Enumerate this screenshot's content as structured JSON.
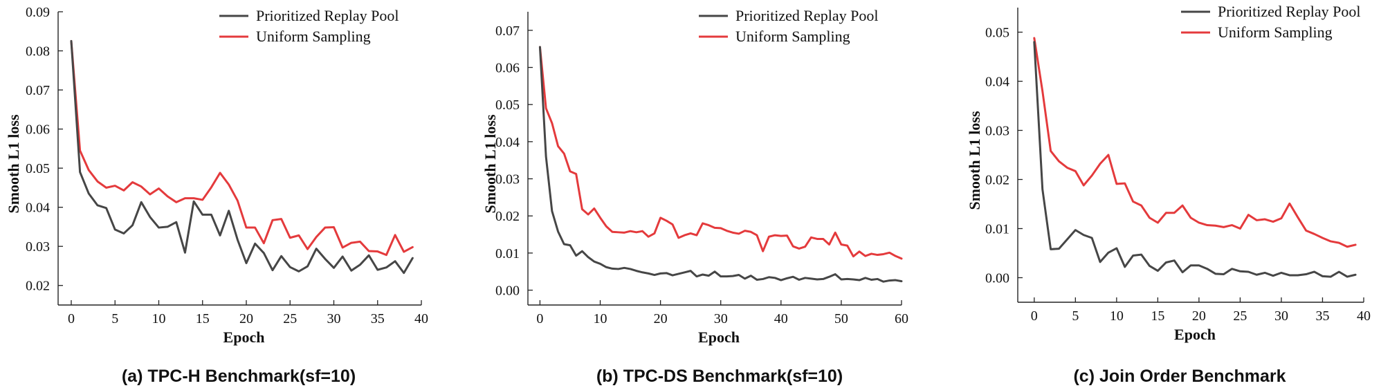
{
  "colors": {
    "prioritized": "#464646",
    "uniform": "#e43a3c",
    "axis": "#222222"
  },
  "chart_data": [
    {
      "type": "line",
      "caption": "(a) TPC-H Benchmark(sf=10)",
      "xlabel": "Epoch",
      "ylabel": "Smooth L1 loss",
      "xlim": [
        -1.5,
        40
      ],
      "ylim": [
        0.015,
        0.09
      ],
      "xticks": [
        0,
        5,
        10,
        15,
        20,
        25,
        30,
        35,
        40
      ],
      "yticks": [
        0.02,
        0.03,
        0.04,
        0.05,
        0.06,
        0.07,
        0.08,
        0.09
      ],
      "ytick_labels": [
        "0.02",
        "0.03",
        "0.04",
        "0.05",
        "0.06",
        "0.07",
        "0.08",
        "0.09"
      ],
      "legend_position": "top-right",
      "series": [
        {
          "name": "Prioritized Replay Pool",
          "color": "#464646",
          "values": [
            0.0825,
            0.049,
            0.0435,
            0.0405,
            0.0398,
            0.0343,
            0.0333,
            0.0354,
            0.0413,
            0.0375,
            0.0348,
            0.035,
            0.0362,
            0.0284,
            0.0415,
            0.0381,
            0.0381,
            0.0328,
            0.0391,
            0.0317,
            0.0257,
            0.0307,
            0.0283,
            0.0239,
            0.0275,
            0.0247,
            0.0236,
            0.0249,
            0.0294,
            0.0268,
            0.0245,
            0.0274,
            0.0238,
            0.0253,
            0.0277,
            0.024,
            0.0246,
            0.0262,
            0.0232,
            0.027
          ]
        },
        {
          "name": "Uniform Sampling",
          "color": "#e43a3c",
          "values": [
            0.0825,
            0.0545,
            0.0495,
            0.0466,
            0.045,
            0.0455,
            0.0443,
            0.0464,
            0.0453,
            0.0433,
            0.0448,
            0.0428,
            0.0413,
            0.0423,
            0.0423,
            0.0419,
            0.0451,
            0.0488,
            0.0458,
            0.0417,
            0.0348,
            0.0348,
            0.0308,
            0.0367,
            0.037,
            0.0322,
            0.0328,
            0.0293,
            0.0324,
            0.0348,
            0.0349,
            0.0297,
            0.0309,
            0.0312,
            0.0288,
            0.0287,
            0.0278,
            0.0329,
            0.0286,
            0.0298
          ]
        }
      ]
    },
    {
      "type": "line",
      "caption": "(b) TPC-DS Benchmark(sf=10)",
      "xlabel": "Epoch",
      "ylabel": "Smooth L1 loss",
      "xlim": [
        -2,
        60
      ],
      "ylim": [
        -0.004,
        0.075
      ],
      "xticks": [
        0,
        10,
        20,
        30,
        40,
        50,
        60
      ],
      "yticks": [
        0.0,
        0.01,
        0.02,
        0.03,
        0.04,
        0.05,
        0.06,
        0.07
      ],
      "ytick_labels": [
        "0.00",
        "0.01",
        "0.02",
        "0.03",
        "0.04",
        "0.05",
        "0.06",
        "0.07"
      ],
      "legend_position": "top-right",
      "series": [
        {
          "name": "Prioritized Replay Pool",
          "color": "#464646",
          "values": [
            0.0655,
            0.036,
            0.0213,
            0.0158,
            0.0124,
            0.0121,
            0.0093,
            0.0105,
            0.0089,
            0.0077,
            0.0071,
            0.0062,
            0.0058,
            0.0057,
            0.006,
            0.0057,
            0.0052,
            0.0048,
            0.0045,
            0.0041,
            0.0045,
            0.0046,
            0.004,
            0.0044,
            0.0048,
            0.0052,
            0.0037,
            0.0042,
            0.0039,
            0.005,
            0.0037,
            0.0037,
            0.0038,
            0.0041,
            0.0031,
            0.0039,
            0.0028,
            0.003,
            0.0035,
            0.0033,
            0.0027,
            0.0032,
            0.0036,
            0.0028,
            0.0033,
            0.0031,
            0.0029,
            0.003,
            0.0036,
            0.0043,
            0.0029,
            0.003,
            0.0029,
            0.0027,
            0.0033,
            0.0028,
            0.003,
            0.0023,
            0.0026,
            0.0027,
            0.0024
          ]
        },
        {
          "name": "Uniform Sampling",
          "color": "#e43a3c",
          "values": [
            0.0655,
            0.049,
            0.045,
            0.0388,
            0.0368,
            0.032,
            0.0313,
            0.0218,
            0.0204,
            0.022,
            0.0195,
            0.0172,
            0.0157,
            0.0156,
            0.0155,
            0.0159,
            0.0156,
            0.0159,
            0.0144,
            0.0153,
            0.0195,
            0.0187,
            0.0177,
            0.0141,
            0.0148,
            0.0153,
            0.0148,
            0.018,
            0.0175,
            0.0168,
            0.0167,
            0.016,
            0.0155,
            0.0152,
            0.016,
            0.0157,
            0.0148,
            0.0105,
            0.0144,
            0.0148,
            0.0146,
            0.0147,
            0.0118,
            0.0112,
            0.0117,
            0.0142,
            0.0138,
            0.0138,
            0.0123,
            0.0155,
            0.0123,
            0.012,
            0.0091,
            0.0104,
            0.0092,
            0.0098,
            0.0095,
            0.0097,
            0.0101,
            0.0092,
            0.0085
          ]
        }
      ]
    },
    {
      "type": "line",
      "caption": "(c) Join Order Benchmark",
      "xlabel": "Epoch",
      "ylabel": "Smooth L1 loss",
      "xlim": [
        -2,
        40
      ],
      "ylim": [
        -0.005,
        0.055
      ],
      "xticks": [
        0,
        5,
        10,
        15,
        20,
        25,
        30,
        35,
        40
      ],
      "yticks": [
        0.0,
        0.01,
        0.02,
        0.03,
        0.04,
        0.05
      ],
      "ytick_labels": [
        "0.00",
        "0.01",
        "0.02",
        "0.03",
        "0.04",
        "0.05"
      ],
      "legend_position": "top-right",
      "series": [
        {
          "name": "Prioritized Replay Pool",
          "color": "#464646",
          "values": [
            0.048,
            0.018,
            0.0058,
            0.0059,
            0.0078,
            0.0097,
            0.0087,
            0.0081,
            0.0032,
            0.0051,
            0.006,
            0.0022,
            0.0045,
            0.0047,
            0.0024,
            0.0014,
            0.0031,
            0.0035,
            0.0011,
            0.0025,
            0.0025,
            0.0018,
            0.0008,
            0.0007,
            0.0018,
            0.0013,
            0.0012,
            0.0006,
            0.001,
            0.0004,
            0.001,
            0.0005,
            0.0005,
            0.0007,
            0.0012,
            0.0003,
            0.0002,
            0.0012,
            0.0002,
            0.0006
          ]
        },
        {
          "name": "Uniform Sampling",
          "color": "#e43a3c",
          "values": [
            0.0488,
            0.038,
            0.0258,
            0.0237,
            0.0224,
            0.0217,
            0.0188,
            0.0208,
            0.0232,
            0.025,
            0.0191,
            0.0192,
            0.0155,
            0.0147,
            0.0122,
            0.0112,
            0.0132,
            0.0132,
            0.0147,
            0.0122,
            0.0112,
            0.0107,
            0.0106,
            0.0103,
            0.0107,
            0.01,
            0.0128,
            0.0117,
            0.0119,
            0.0114,
            0.0121,
            0.0151,
            0.0123,
            0.0096,
            0.0089,
            0.0081,
            0.0074,
            0.0071,
            0.0063,
            0.0067
          ]
        }
      ]
    }
  ]
}
